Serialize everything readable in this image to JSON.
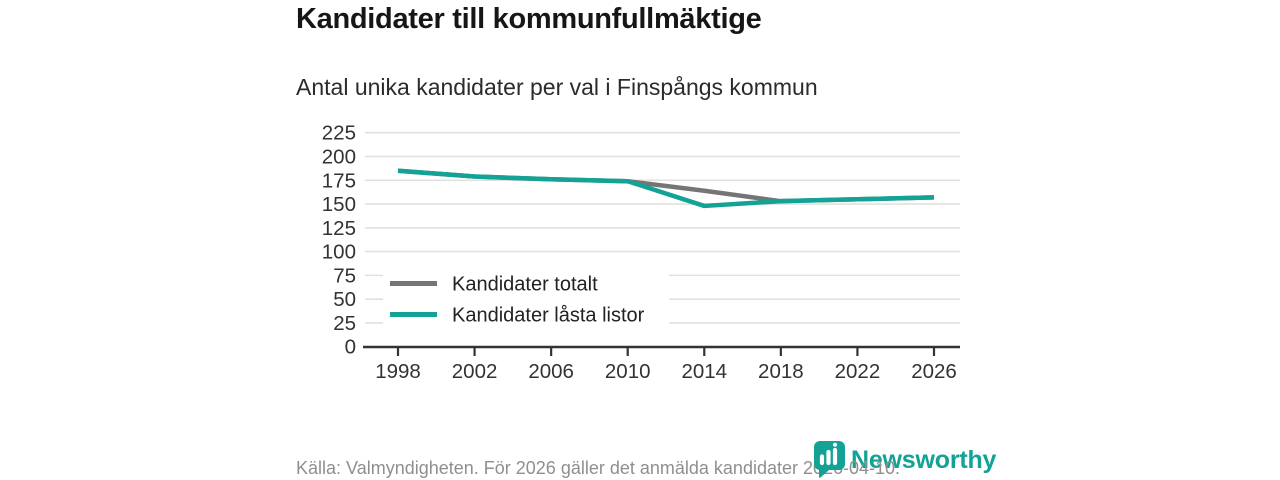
{
  "header": {
    "title": "Kandidater till kommunfullmäktige",
    "subtitle": "Antal unika kandidater per val i Finspångs kommun"
  },
  "footer": {
    "source_text": "Källa: Valmyndigheten. För 2026 gäller det anmälda kandidater 2026-04-10.",
    "brand": "Newsworthy",
    "brand_color": "#12a296"
  },
  "colors": {
    "accent_teal": "#12a296",
    "series_gray": "#757575",
    "grid": "#e0e0e0",
    "axis": "#333333",
    "axis_text": "#333333",
    "legend_text": "#222222"
  },
  "chart_data": {
    "type": "line",
    "title": "Kandidater till kommunfullmäktige",
    "subtitle": "Antal unika kandidater per val i Finspångs kommun",
    "categories": [
      "1998",
      "2002",
      "2006",
      "2010",
      "2014",
      "2018",
      "2022",
      "2026"
    ],
    "series": [
      {
        "name": "Kandidater totalt",
        "color": "#757575",
        "values": [
          185,
          179,
          176,
          174,
          164,
          153,
          155,
          157
        ]
      },
      {
        "name": "Kandidater låsta listor",
        "color": "#12a296",
        "values": [
          185,
          179,
          176,
          174,
          148,
          153,
          155,
          157
        ]
      }
    ],
    "xlabel": "",
    "ylabel": "",
    "ylim": [
      0,
      225
    ],
    "ytick_step": 25,
    "grid": "horizontal",
    "legend_position": "inside-bottom-left"
  }
}
